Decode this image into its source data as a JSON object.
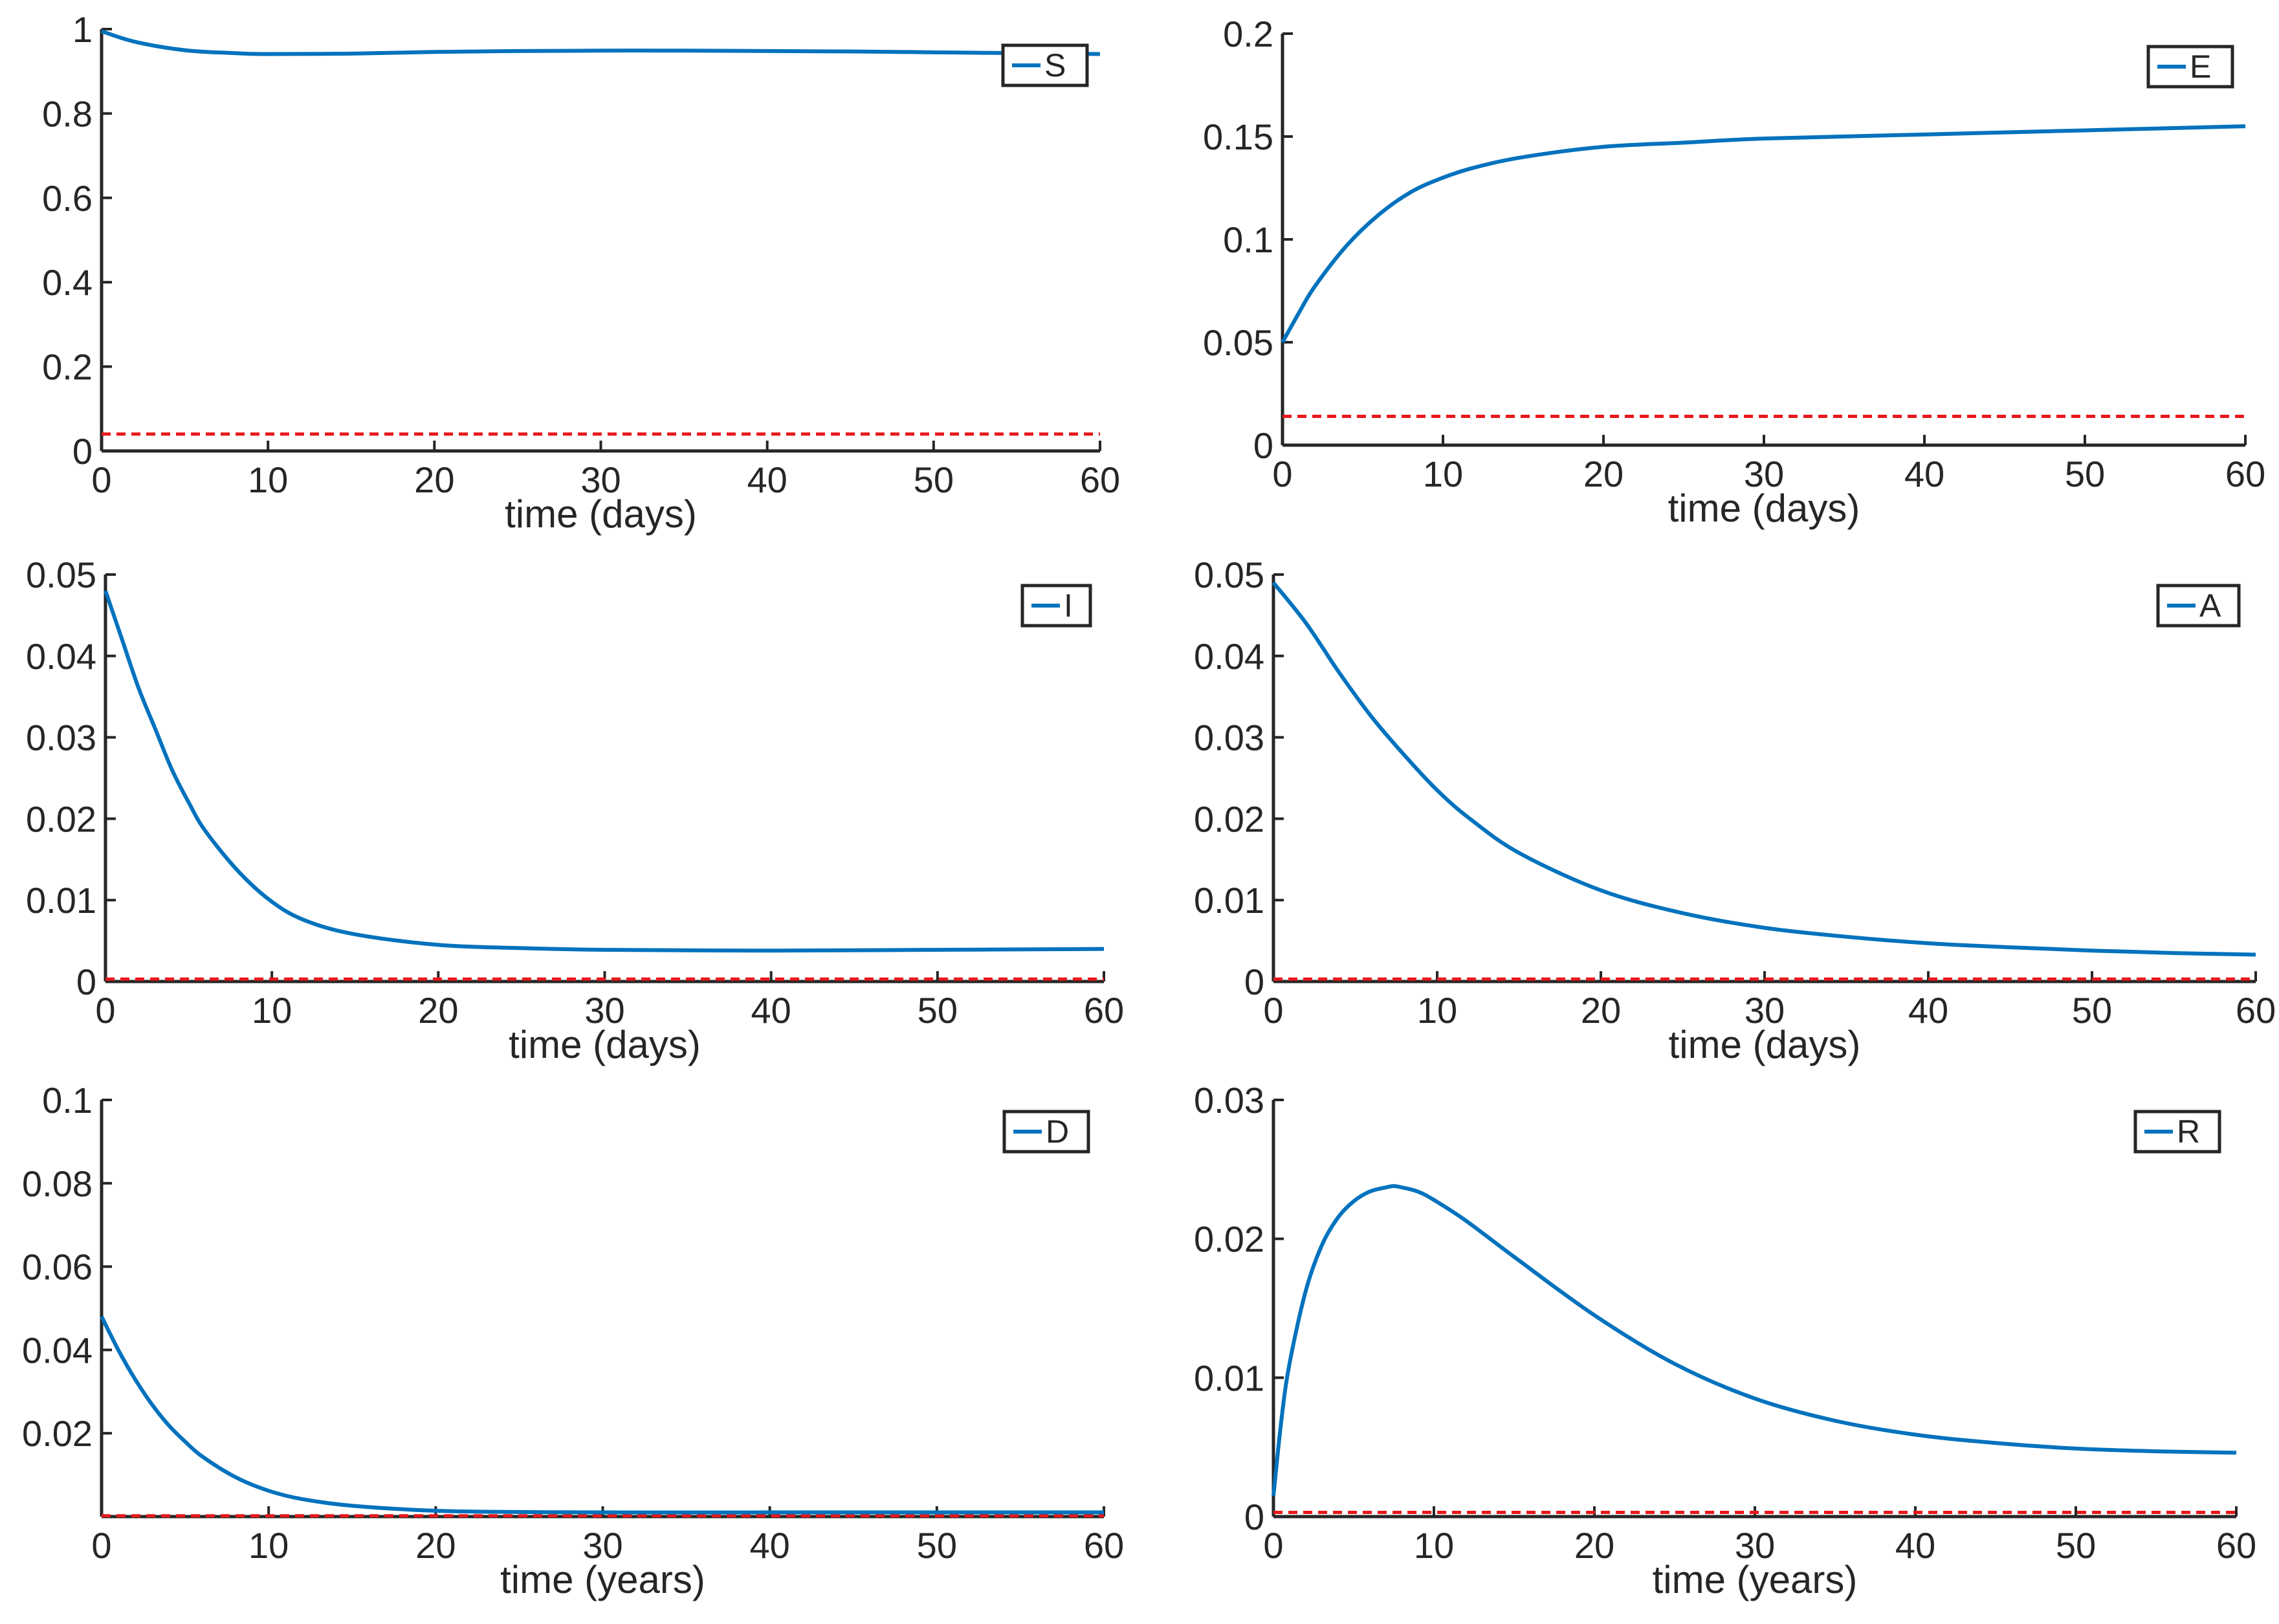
{
  "colors": {
    "series": "#0072bd",
    "threshold": "#e8181c",
    "axis": "#262626",
    "background": "#ffffff"
  },
  "chart_data": [
    {
      "type": "line",
      "legend": "S",
      "legend_position": "top-right",
      "xlabel": "time (days)",
      "ylabel": "",
      "xlim": [
        0,
        60
      ],
      "ylim": [
        0,
        1
      ],
      "xticks": [
        0,
        10,
        20,
        30,
        40,
        50,
        60
      ],
      "yticks": [
        0,
        0.2,
        0.4,
        0.6,
        0.8,
        1
      ],
      "ytick_labels": [
        "0",
        "0.2",
        "0.4",
        "0.6",
        "0.8",
        "1"
      ],
      "x": [
        0,
        2,
        5,
        8,
        10,
        15,
        20,
        25,
        30,
        35,
        40,
        45,
        50,
        55,
        60
      ],
      "y": [
        0.995,
        0.97,
        0.95,
        0.943,
        0.941,
        0.942,
        0.946,
        0.948,
        0.949,
        0.949,
        0.948,
        0.947,
        0.945,
        0.943,
        0.941
      ],
      "threshold": 0.04
    },
    {
      "type": "line",
      "legend": "E",
      "legend_position": "top-right",
      "xlabel": "time (days)",
      "ylabel": "",
      "xlim": [
        0,
        60
      ],
      "ylim": [
        0,
        0.2
      ],
      "xticks": [
        0,
        10,
        20,
        30,
        40,
        50,
        60
      ],
      "yticks": [
        0,
        0.05,
        0.1,
        0.15,
        0.2
      ],
      "ytick_labels": [
        "0",
        "0.05",
        "0.1",
        "0.15",
        "0.2"
      ],
      "x": [
        0,
        1,
        2,
        4,
        6,
        8,
        10,
        12,
        15,
        20,
        25,
        30,
        40,
        50,
        60
      ],
      "y": [
        0.05,
        0.064,
        0.077,
        0.097,
        0.112,
        0.123,
        0.13,
        0.135,
        0.14,
        0.145,
        0.147,
        0.149,
        0.151,
        0.153,
        0.155
      ],
      "threshold": 0.014
    },
    {
      "type": "line",
      "legend": "I",
      "legend_position": "top-right",
      "xlabel": "time (days)",
      "ylabel": "",
      "xlim": [
        0,
        60
      ],
      "ylim": [
        0,
        0.05
      ],
      "xticks": [
        0,
        10,
        20,
        30,
        40,
        50,
        60
      ],
      "yticks": [
        0,
        0.01,
        0.02,
        0.03,
        0.04,
        0.05
      ],
      "ytick_labels": [
        "0",
        "0.01",
        "0.02",
        "0.03",
        "0.04",
        "0.05"
      ],
      "x": [
        0,
        1,
        2,
        3,
        4,
        5,
        6,
        8,
        10,
        12,
        15,
        20,
        25,
        30,
        40,
        50,
        60
      ],
      "y": [
        0.048,
        0.042,
        0.036,
        0.031,
        0.026,
        0.022,
        0.0185,
        0.0135,
        0.0098,
        0.0075,
        0.0058,
        0.0045,
        0.0041,
        0.0039,
        0.0038,
        0.0039,
        0.004
      ],
      "threshold": 0.0003
    },
    {
      "type": "line",
      "legend": "A",
      "legend_position": "top-right",
      "xlabel": "time (days)",
      "ylabel": "",
      "xlim": [
        0,
        60
      ],
      "ylim": [
        0,
        0.05
      ],
      "xticks": [
        0,
        10,
        20,
        30,
        40,
        50,
        60
      ],
      "yticks": [
        0,
        0.01,
        0.02,
        0.03,
        0.04,
        0.05
      ],
      "ytick_labels": [
        "0",
        "0.01",
        "0.02",
        "0.03",
        "0.04",
        "0.05"
      ],
      "x": [
        0,
        2,
        4,
        6,
        8,
        10,
        12,
        15,
        20,
        25,
        30,
        35,
        40,
        45,
        50,
        55,
        60
      ],
      "y": [
        0.049,
        0.044,
        0.038,
        0.0325,
        0.0278,
        0.0235,
        0.02,
        0.0158,
        0.0112,
        0.0084,
        0.0066,
        0.0055,
        0.0047,
        0.0042,
        0.0038,
        0.0035,
        0.0033
      ],
      "threshold": 0.0003
    },
    {
      "type": "line",
      "legend": "D",
      "legend_position": "top-right",
      "xlabel": "time (years)",
      "ylabel": "",
      "xlim": [
        0,
        60
      ],
      "ylim": [
        0,
        0.1
      ],
      "xticks": [
        0,
        10,
        20,
        30,
        40,
        50,
        60
      ],
      "yticks": [
        0.02,
        0.04,
        0.06,
        0.08,
        0.1
      ],
      "ytick_labels": [
        "0.02",
        "0.04",
        "0.06",
        "0.08",
        "0.1"
      ],
      "x": [
        0,
        1,
        2,
        3,
        4,
        5,
        6,
        8,
        10,
        12,
        15,
        20,
        25,
        30,
        40,
        50,
        60
      ],
      "y": [
        0.048,
        0.04,
        0.033,
        0.027,
        0.022,
        0.018,
        0.0145,
        0.0095,
        0.0062,
        0.0042,
        0.0026,
        0.0014,
        0.0011,
        0.001,
        0.001,
        0.001,
        0.001
      ],
      "threshold": 0.0002
    },
    {
      "type": "line",
      "legend": "R",
      "legend_position": "top-right",
      "xlabel": "time (years)",
      "ylabel": "",
      "xlim": [
        0,
        60
      ],
      "ylim": [
        0,
        0.03
      ],
      "xticks": [
        0,
        10,
        20,
        30,
        40,
        50,
        60
      ],
      "yticks": [
        0,
        0.01,
        0.02,
        0.03
      ],
      "ytick_labels": [
        "0",
        "0.01",
        "0.02",
        "0.03"
      ],
      "x": [
        0,
        0.5,
        1,
        2,
        3,
        4,
        5,
        6,
        7,
        7.5,
        8,
        9,
        10,
        12,
        15,
        20,
        25,
        30,
        35,
        40,
        45,
        50,
        55,
        60
      ],
      "y": [
        0.0015,
        0.007,
        0.011,
        0.0162,
        0.0195,
        0.0215,
        0.0227,
        0.0234,
        0.0237,
        0.0238,
        0.0237,
        0.0234,
        0.0228,
        0.0213,
        0.0187,
        0.0145,
        0.011,
        0.0085,
        0.0069,
        0.0059,
        0.0053,
        0.0049,
        0.0047,
        0.0046
      ],
      "threshold": 0.0003
    }
  ]
}
